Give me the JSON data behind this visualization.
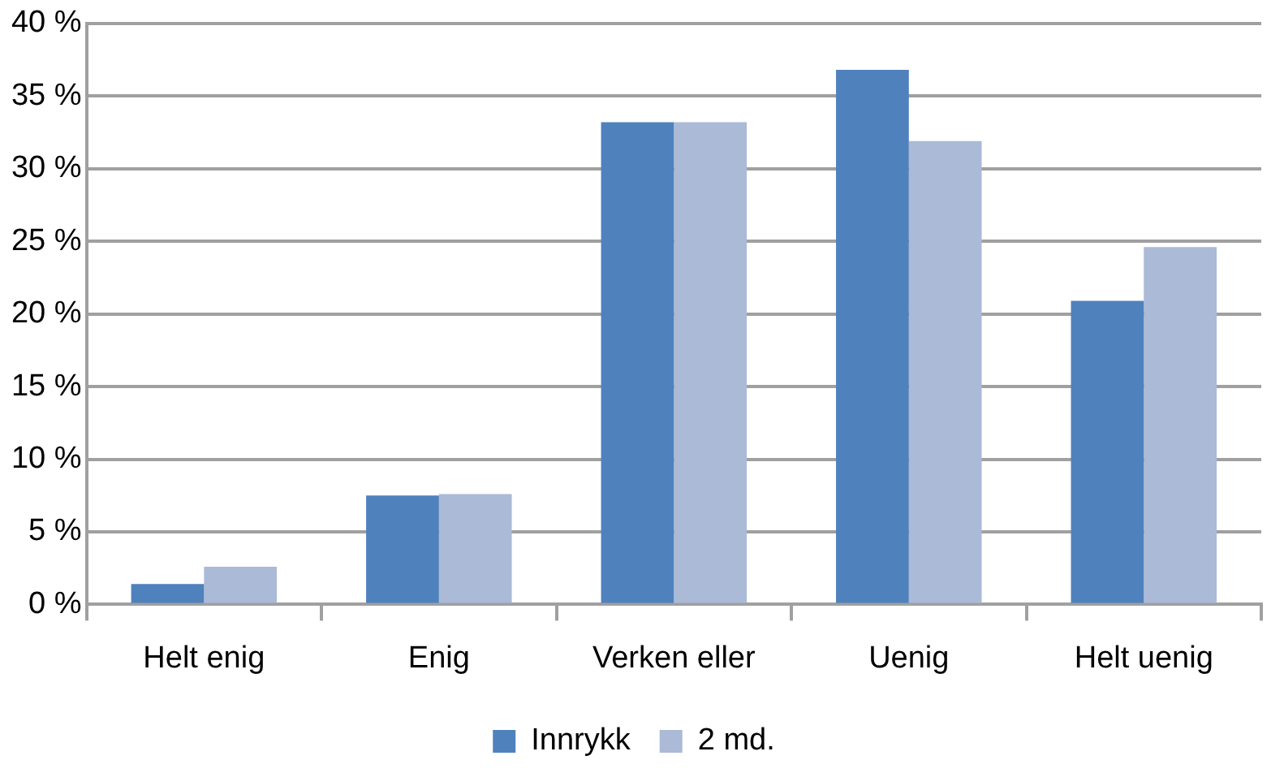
{
  "chart_data": {
    "type": "bar",
    "categories": [
      "Helt enig",
      "Enig",
      "Verken eller",
      "Uenig",
      "Helt uenig"
    ],
    "series": [
      {
        "name": "Innrykk",
        "color": "#4f81bd",
        "values": [
          1.4,
          7.5,
          33.2,
          36.8,
          20.9
        ]
      },
      {
        "name": "2 md.",
        "color": "#aabad7",
        "values": [
          2.6,
          7.6,
          33.2,
          31.9,
          24.6
        ]
      }
    ],
    "ylim": [
      0,
      40
    ],
    "yticks": [
      {
        "value": 0,
        "label": "0 %"
      },
      {
        "value": 5,
        "label": "5 %"
      },
      {
        "value": 10,
        "label": "10 %"
      },
      {
        "value": 15,
        "label": "15 %"
      },
      {
        "value": 20,
        "label": "20 %"
      },
      {
        "value": 25,
        "label": "25 %"
      },
      {
        "value": 30,
        "label": "30 %"
      },
      {
        "value": 35,
        "label": "35 %"
      },
      {
        "value": 40,
        "label": "40 %"
      }
    ],
    "grid": "y",
    "legend": "bottom"
  }
}
